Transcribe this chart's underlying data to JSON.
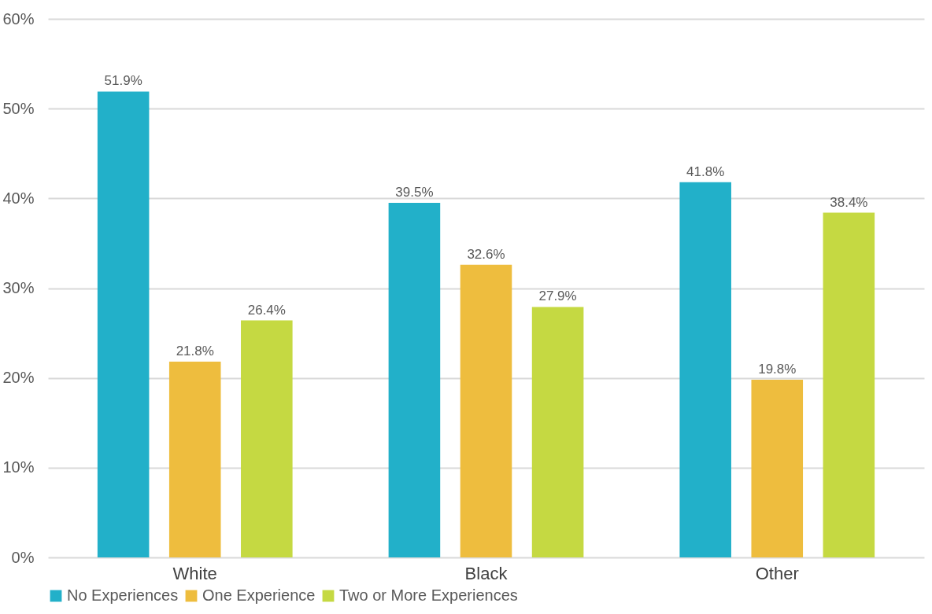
{
  "chart_data": {
    "type": "bar",
    "categories": [
      "White",
      "Black",
      "Other"
    ],
    "series": [
      {
        "name": "No Experiences",
        "color": "#22b0c9",
        "values": [
          51.9,
          39.5,
          41.8
        ],
        "value_labels": [
          "51.9%",
          "39.5%",
          "41.8%"
        ]
      },
      {
        "name": "One Experience",
        "color": "#eebd3e",
        "values": [
          21.8,
          32.6,
          19.8
        ],
        "value_labels": [
          "21.8%",
          "32.6%",
          "19.8%"
        ]
      },
      {
        "name": "Two or More Experiences",
        "color": "#c5d942",
        "values": [
          26.4,
          27.9,
          38.4
        ],
        "value_labels": [
          "26.4%",
          "27.9%",
          "38.4%"
        ]
      }
    ],
    "ylim": [
      0,
      60
    ],
    "yticks": [
      {
        "value": 0,
        "label": "0%"
      },
      {
        "value": 10,
        "label": "10%"
      },
      {
        "value": 20,
        "label": "20%"
      },
      {
        "value": 30,
        "label": "30%"
      },
      {
        "value": 40,
        "label": "40%"
      },
      {
        "value": 50,
        "label": "50%"
      },
      {
        "value": 60,
        "label": "60%"
      }
    ],
    "grid": "y",
    "legend": "bottom"
  }
}
